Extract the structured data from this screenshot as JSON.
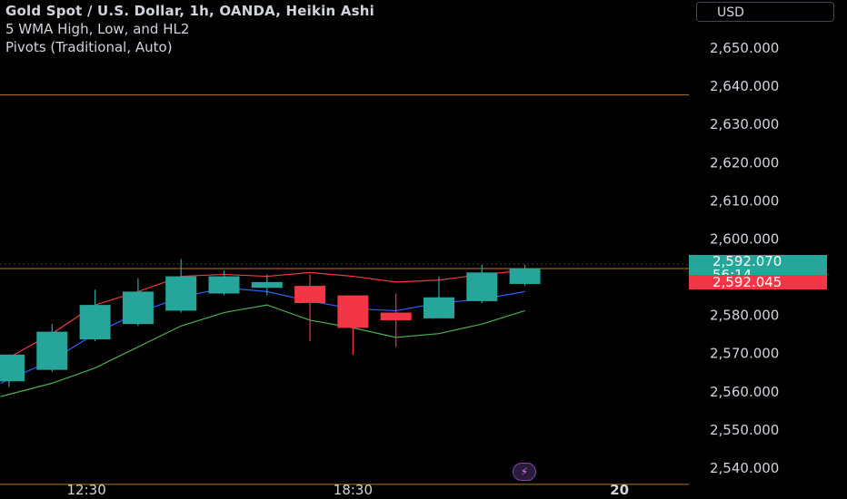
{
  "legend": {
    "title": "Gold Spot / U.S. Dollar, 1h, OANDA, Heikin Ashi",
    "indicator1": "5 WMA High, Low, and HL2",
    "indicator2": "Pivots (Traditional, Auto)"
  },
  "currency_button": "USD",
  "price_tags": {
    "last_price": "2,592.070",
    "countdown": "56:14",
    "pivot_price": "2,592.045"
  },
  "colors": {
    "up": "#26a69a",
    "down": "#f23645",
    "wma_high": "#f23645",
    "wma_low": "#4caf50",
    "wma_hl2": "#2962ff",
    "pivot_line": "#b8791f"
  },
  "chart_data": {
    "type": "candlestick",
    "title": "Gold Spot / U.S. Dollar, 1h, OANDA, Heikin Ashi",
    "ylim": [
      2535,
      2660
    ],
    "y_ticks": [
      2540,
      2550,
      2560,
      2570,
      2580,
      2590,
      2600,
      2610,
      2620,
      2630,
      2640,
      2650
    ],
    "y_tick_labels": [
      "2,540.000",
      "2,550.000",
      "2,560.000",
      "2,570.000",
      "2,580.000",
      "2,590.000",
      "2,600.000",
      "2,610.000",
      "2,620.000",
      "2,630.000",
      "2,640.000",
      "2,650.000"
    ],
    "x_tick_labels": [
      {
        "label": "12:30",
        "index": 1.8
      },
      {
        "label": "18:30",
        "index": 8.0
      },
      {
        "label": "20",
        "index": 14.2
      }
    ],
    "candles": [
      {
        "open": 2562.5,
        "high": 2568.5,
        "low": 2561.0,
        "close": 2569.5
      },
      {
        "open": 2565.5,
        "high": 2577.5,
        "low": 2565.0,
        "close": 2575.5
      },
      {
        "open": 2573.5,
        "high": 2586.5,
        "low": 2573.0,
        "close": 2582.5
      },
      {
        "open": 2577.5,
        "high": 2589.5,
        "low": 2577.0,
        "close": 2586.0
      },
      {
        "open": 2581.0,
        "high": 2594.5,
        "low": 2580.5,
        "close": 2590.0
      },
      {
        "open": 2585.5,
        "high": 2591.5,
        "low": 2585.0,
        "close": 2590.0
      },
      {
        "open": 2587.0,
        "high": 2590.5,
        "low": 2585.0,
        "close": 2588.5
      },
      {
        "open": 2587.5,
        "high": 2590.5,
        "low": 2573.0,
        "close": 2583.0
      },
      {
        "open": 2585.0,
        "high": 2585.0,
        "low": 2569.5,
        "close": 2576.5
      },
      {
        "open": 2580.5,
        "high": 2585.5,
        "low": 2571.5,
        "close": 2578.5
      },
      {
        "open": 2579.0,
        "high": 2590.0,
        "low": 2579.0,
        "close": 2584.5
      },
      {
        "open": 2583.5,
        "high": 2593.0,
        "low": 2583.0,
        "close": 2591.0
      },
      {
        "open": 2588.0,
        "high": 2593.0,
        "low": 2587.5,
        "close": 2592.0
      }
    ],
    "series": [
      {
        "name": "WMA High",
        "color": "#f23645",
        "x": [
          -0.2,
          1,
          2,
          3,
          4,
          5,
          6,
          7,
          8,
          9,
          10,
          11,
          12
        ],
        "values": [
          2567.5,
          2575.0,
          2582.5,
          2586.0,
          2590.0,
          2590.5,
          2590.0,
          2591.0,
          2590.0,
          2588.5,
          2589.0,
          2590.5,
          2591.5
        ]
      },
      {
        "name": "WMA HL2",
        "color": "#2962ff",
        "x": [
          -0.2,
          1,
          2,
          3,
          4,
          5,
          6,
          7,
          8,
          9,
          10,
          11,
          12
        ],
        "values": [
          2562.0,
          2568.0,
          2575.0,
          2580.5,
          2584.5,
          2587.0,
          2586.0,
          2583.5,
          2581.5,
          2581.0,
          2583.0,
          2584.0,
          2586.0
        ]
      },
      {
        "name": "WMA Low",
        "color": "#4caf50",
        "x": [
          -0.2,
          1,
          2,
          3,
          4,
          5,
          6,
          7,
          8,
          9,
          10,
          11,
          12
        ],
        "values": [
          2558.5,
          2562.0,
          2566.0,
          2571.5,
          2577.0,
          2580.5,
          2582.5,
          2578.5,
          2576.5,
          2574.0,
          2575.0,
          2577.5,
          2581.0
        ]
      }
    ],
    "pivot_levels": [
      2637.5,
      2592.045,
      2535.5
    ]
  }
}
